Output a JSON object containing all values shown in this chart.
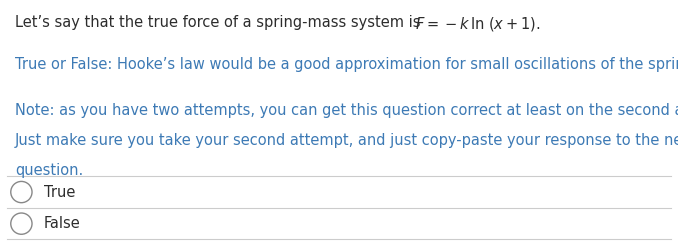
{
  "bg_color": "#ffffff",
  "text_color_black": "#2d2d2d",
  "text_color_blue": "#3d7ab5",
  "line1_normal": "Let’s say that the true force of a spring-mass system is ",
  "line2": "True or False: Hooke’s law would be a good approximation for small oscillations of the spring-mass.",
  "line3a": "Note: as you have two attempts, you can get this question correct at least on the second attempt.",
  "line3b": "Just make sure you take your second attempt, and just copy-paste your response to the next",
  "line3c": "question.",
  "option1": "True",
  "option2": "False",
  "font_size_main": 10.5,
  "font_size_options": 10.5,
  "separator_color": "#cccccc",
  "circle_color": "#888888"
}
